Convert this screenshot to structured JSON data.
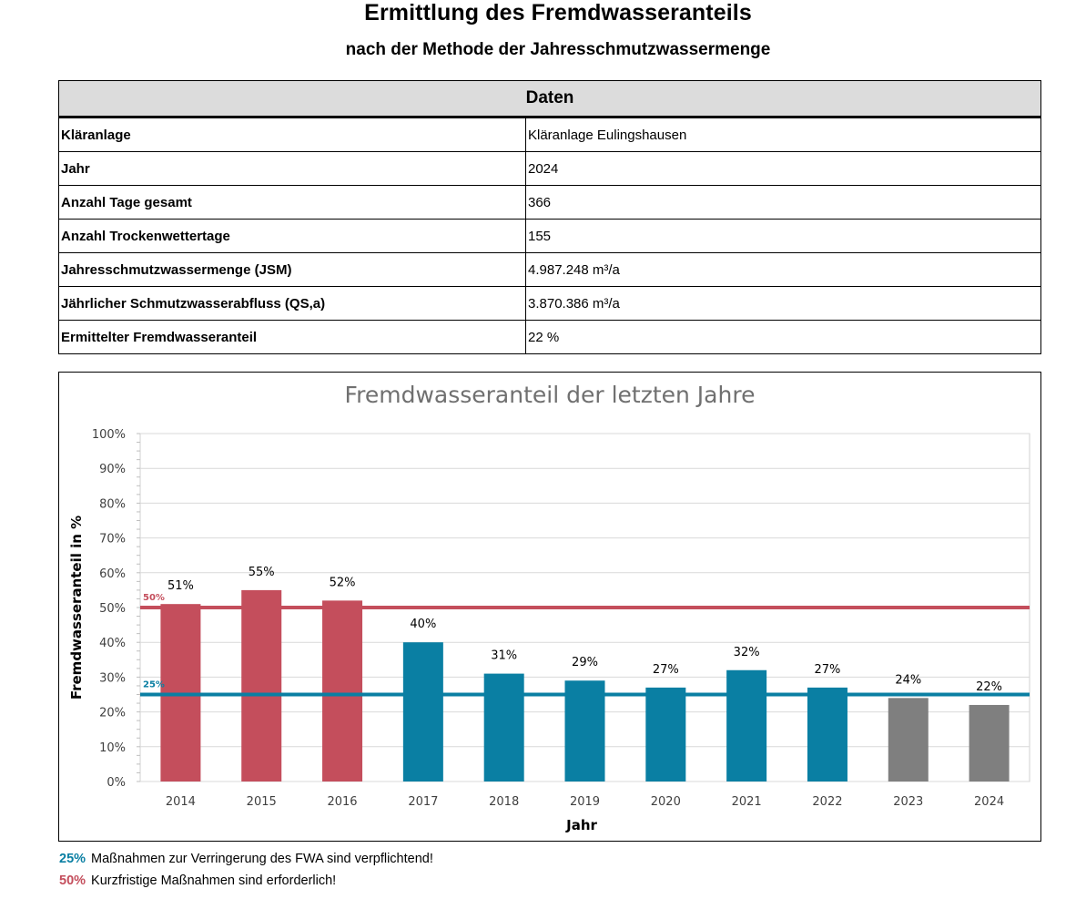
{
  "header": {
    "title": "Ermittlung des Fremdwasseranteils",
    "subtitle": "nach der Methode der Jahresschmutzwassermenge"
  },
  "table": {
    "heading": "Daten",
    "rows": [
      {
        "label": "Kläranlage",
        "value": "Kläranlage Eulingshausen"
      },
      {
        "label": "Jahr",
        "value": "2024"
      },
      {
        "label": "Anzahl Tage gesamt",
        "value": "366"
      },
      {
        "label": "Anzahl Trockenwettertage",
        "value": "155"
      },
      {
        "label": "Jahresschmutzwassermenge (JSM)",
        "value": "4.987.248 m³/a"
      },
      {
        "label": "Jährlicher Schmutzwasserabfluss (QS,a)",
        "value": "3.870.386 m³/a"
      },
      {
        "label": "Ermittelter Fremdwasseranteil",
        "value": "22 %"
      }
    ]
  },
  "chart_data": {
    "type": "bar",
    "title": "Fremdwasseranteil der letzten Jahre",
    "xlabel": "Jahr",
    "ylabel": "Fremdwasseranteil in %",
    "ylim": [
      0,
      100
    ],
    "yticks": [
      "0%",
      "10%",
      "20%",
      "30%",
      "40%",
      "50%",
      "60%",
      "70%",
      "80%",
      "90%",
      "100%"
    ],
    "categories": [
      "2014",
      "2015",
      "2016",
      "2017",
      "2018",
      "2019",
      "2020",
      "2021",
      "2022",
      "2023",
      "2024"
    ],
    "values": [
      51,
      55,
      52,
      40,
      31,
      29,
      27,
      32,
      27,
      24,
      22
    ],
    "data_labels": [
      "51%",
      "55%",
      "52%",
      "40%",
      "31%",
      "29%",
      "27%",
      "32%",
      "27%",
      "24%",
      "22%"
    ],
    "bar_colors": [
      "#c44e5c",
      "#c44e5c",
      "#c44e5c",
      "#0a7fa3",
      "#0a7fa3",
      "#0a7fa3",
      "#0a7fa3",
      "#0a7fa3",
      "#0a7fa3",
      "#7f7f7f",
      "#7f7f7f"
    ],
    "grid": true,
    "reference_lines": [
      {
        "value": 50,
        "label": "50%",
        "color": "#c44e5c"
      },
      {
        "value": 25,
        "label": "25%",
        "color": "#0a7fa3"
      }
    ]
  },
  "legend": [
    {
      "pct": "25%",
      "text": "Maßnahmen zur Verringerung des FWA sind verpflichtend!",
      "color": "#0a7fa3"
    },
    {
      "pct": "50%",
      "text": "Kurzfristige Maßnahmen sind erforderlich!",
      "color": "#c44e5c"
    }
  ]
}
